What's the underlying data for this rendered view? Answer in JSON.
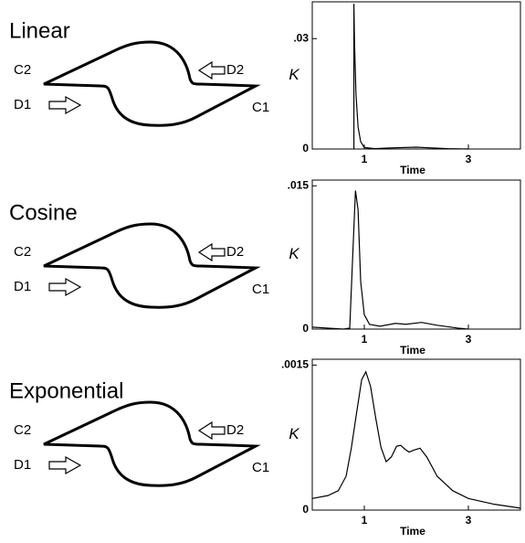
{
  "diagrams": [
    {
      "title": "Linear",
      "labels": [
        "C2",
        "D2",
        "D1",
        "C1"
      ]
    },
    {
      "title": "Cosine",
      "labels": [
        "C2",
        "D2",
        "D1",
        "C1"
      ]
    },
    {
      "title": "Exponential",
      "labels": [
        "C2",
        "D2",
        "D1",
        "C1"
      ]
    }
  ],
  "chart_data": [
    {
      "type": "line",
      "xlabel": "Time",
      "ylabel": "K",
      "color": "#000000",
      "x": [
        0.8,
        0.8,
        0.81,
        0.84,
        0.88,
        0.93,
        1.0,
        1.2,
        1.5,
        2.0,
        2.3,
        2.6,
        3.0
      ],
      "values": [
        0,
        0.0395,
        0.03,
        0.015,
        0.006,
        0.002,
        0.0004,
        0.0001,
        0.0003,
        0.0005,
        0.0003,
        0.0001,
        0
      ],
      "xlim": [
        0,
        4
      ],
      "ylim": [
        0,
        0.04
      ],
      "xticks": [
        1,
        3
      ],
      "yticks": [
        0,
        {
          "value": 0.03,
          "label": ".03"
        }
      ]
    },
    {
      "type": "line",
      "xlabel": "Time",
      "ylabel": "K",
      "color": "#000000",
      "x": [
        0,
        0.3,
        0.6,
        0.72,
        0.78,
        0.83,
        0.88,
        0.93,
        1.0,
        1.1,
        1.3,
        1.6,
        1.8,
        2.1,
        2.4,
        2.8,
        3.0
      ],
      "values": [
        0.0002,
        0.0001,
        0,
        0.0001,
        0.008,
        0.0145,
        0.0125,
        0.005,
        0.0015,
        0.0005,
        0.0003,
        0.0006,
        0.0005,
        0.0007,
        0.0004,
        0.0001,
        0
      ],
      "xlim": [
        0,
        4
      ],
      "ylim": [
        0,
        0.0156
      ],
      "xticks": [
        1,
        3
      ],
      "yticks": [
        0,
        {
          "value": 0.015,
          "label": ".015"
        }
      ]
    },
    {
      "type": "line",
      "xlabel": "Time",
      "ylabel": "K",
      "color": "#000000",
      "x": [
        0,
        0.3,
        0.5,
        0.65,
        0.75,
        0.85,
        0.95,
        1.03,
        1.12,
        1.22,
        1.32,
        1.42,
        1.52,
        1.62,
        1.7,
        1.78,
        1.86,
        1.95,
        2.07,
        2.2,
        2.4,
        2.7,
        3.0,
        3.5,
        4.0
      ],
      "values": [
        0.00012,
        0.00015,
        0.0002,
        0.00035,
        0.00064,
        0.001,
        0.00135,
        0.00143,
        0.00128,
        0.00095,
        0.00065,
        0.0005,
        0.00055,
        0.00066,
        0.00067,
        0.00063,
        0.0006,
        0.00062,
        0.00064,
        0.00055,
        0.00035,
        0.0002,
        0.00012,
        6e-05,
        2e-05
      ],
      "xlim": [
        0,
        4
      ],
      "ylim": [
        0,
        0.00156
      ],
      "xticks": [
        1,
        3
      ],
      "yticks": [
        0,
        {
          "value": 0.0015,
          "label": ".0015"
        }
      ]
    }
  ]
}
